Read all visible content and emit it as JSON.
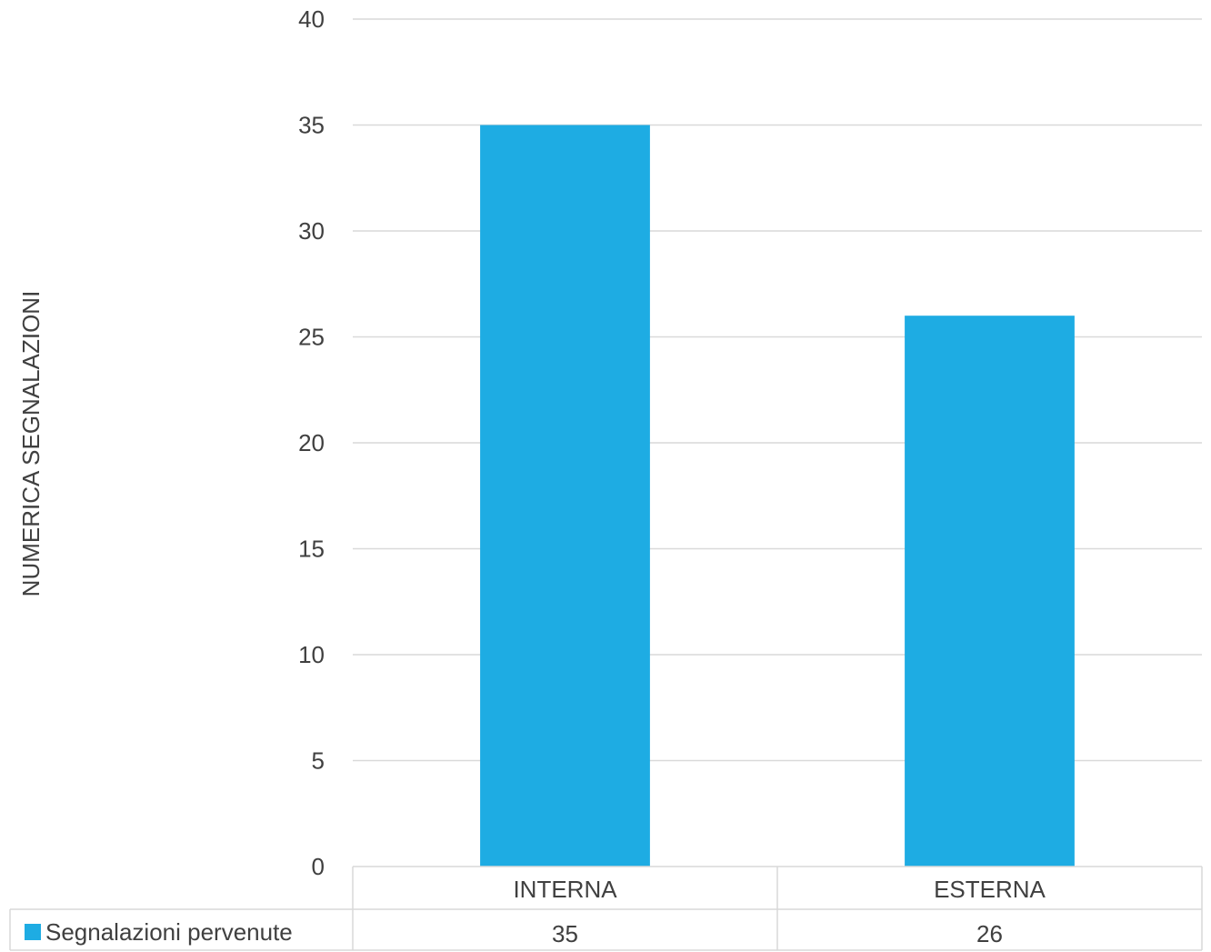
{
  "chart_data": {
    "type": "bar",
    "categories": [
      "INTERNA",
      "ESTERNA"
    ],
    "series": [
      {
        "name": "Segnalazioni pervenute",
        "values": [
          35,
          26
        ],
        "color": "#1EACE3"
      }
    ],
    "ylabel": "NUMERICA SEGNALAZIONI",
    "xlabel": "",
    "ylim": [
      0,
      40
    ],
    "yticks": [
      0,
      5,
      10,
      15,
      20,
      25,
      30,
      35,
      40
    ],
    "grid": true,
    "legend": "data-table-left",
    "data_table": true
  }
}
